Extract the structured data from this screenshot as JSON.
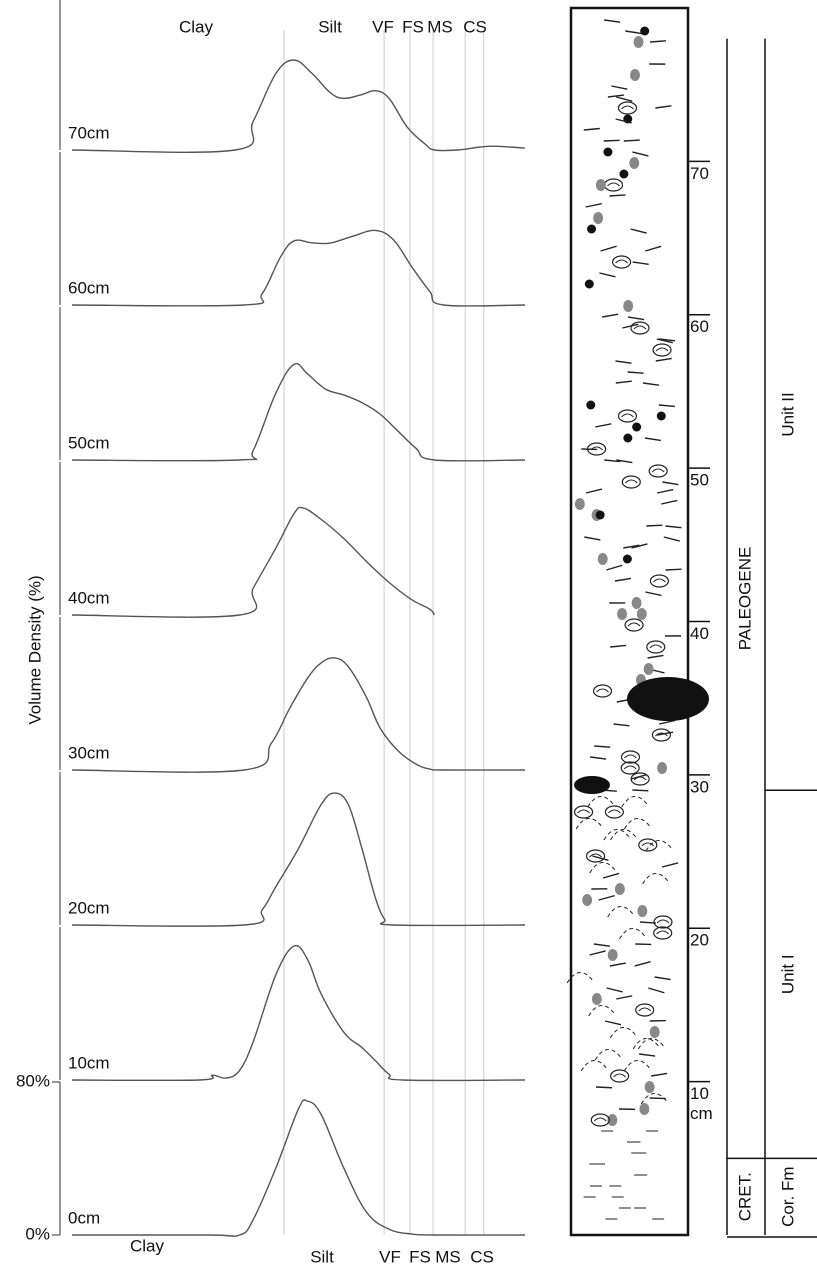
{
  "chart_data": {
    "type": "line",
    "y_label": "Volume Density (%)",
    "size_classes": [
      "Clay",
      "Silt",
      "VF",
      "FS",
      "MS",
      "CS"
    ],
    "class_boundaries": [
      46.8,
      68.9,
      74.6,
      79.7,
      86.8,
      90.9
    ],
    "xlim": [
      0,
      100
    ],
    "ylim": [
      0,
      80
    ],
    "yticks": [
      {
        "value": 0,
        "label": "0%"
      },
      {
        "value": 80,
        "label": "80%"
      }
    ],
    "series": [
      {
        "name": "0cm",
        "color": "#555555",
        "x": [
          0,
          30,
          37,
          40,
          45,
          50,
          52,
          55,
          60,
          65,
          70,
          75,
          80,
          100
        ],
        "values": [
          0,
          0,
          0,
          8,
          35,
          66,
          70,
          63,
          35,
          12,
          3,
          0.5,
          0,
          0
        ]
      },
      {
        "name": "10cm",
        "color": "#555555",
        "x": [
          0,
          28,
          31,
          34,
          37,
          40,
          45,
          49,
          52,
          55,
          60,
          64,
          67,
          70,
          73,
          100
        ],
        "values": [
          0,
          0,
          2.5,
          1,
          5,
          20,
          55,
          70,
          63,
          45,
          25,
          17,
          10,
          3,
          0,
          0
        ]
      },
      {
        "name": "20cm",
        "color": "#555555",
        "x": [
          0,
          38,
          42,
          45,
          50,
          55,
          58,
          61,
          64,
          67,
          69,
          71,
          100
        ],
        "values": [
          0,
          0,
          8,
          20,
          40,
          63,
          69,
          63,
          40,
          14,
          3,
          0,
          0
        ]
      },
      {
        "name": "30cm",
        "color": "#555555",
        "x": [
          0,
          38,
          44,
          48,
          52,
          55,
          58,
          61,
          65,
          68,
          72,
          76,
          79,
          82,
          100
        ],
        "values": [
          0,
          0,
          14,
          32,
          48,
          56,
          58.6,
          54,
          38,
          22,
          10,
          3,
          0.5,
          0,
          0
        ]
      },
      {
        "name": "40cm",
        "color": "#555555",
        "x": [
          0,
          37,
          40,
          45,
          49,
          51,
          55,
          60,
          65,
          70,
          75,
          79,
          80
        ],
        "values": [
          0,
          0,
          14,
          35,
          53,
          56,
          50,
          40,
          28,
          17,
          8,
          3,
          0
        ]
      },
      {
        "name": "50cm",
        "color": "#555555",
        "x": [
          0,
          37,
          40,
          45,
          49,
          52,
          56,
          60,
          64,
          68,
          72,
          76,
          80,
          100
        ],
        "values": [
          0,
          0,
          5,
          35,
          50,
          45,
          37,
          34,
          30,
          24,
          15,
          6,
          0,
          0
        ]
      },
      {
        "name": "60cm",
        "color": "#555555",
        "x": [
          0,
          38,
          42,
          46,
          49,
          53,
          57,
          62,
          67,
          71,
          75,
          79,
          82,
          100
        ],
        "values": [
          0,
          0,
          6,
          25,
          33.5,
          32.5,
          32.4,
          36,
          39,
          34,
          20,
          7,
          0,
          0
        ]
      },
      {
        "name": "70cm",
        "color": "#555555",
        "x": [
          0,
          36,
          40,
          45,
          49,
          53,
          57,
          60,
          64,
          67,
          70,
          74,
          78,
          80,
          85,
          90,
          93,
          97,
          100
        ],
        "values": [
          0,
          0,
          15,
          40,
          47,
          40,
          30,
          27,
          29,
          31,
          27,
          12,
          3,
          0,
          0,
          1.5,
          2,
          1.5,
          1
        ]
      }
    ]
  },
  "stratigraphy": {
    "ylim": [
      0,
      80
    ],
    "ticks": [
      10,
      20,
      30,
      40,
      50,
      60,
      70
    ],
    "unit": "cm",
    "periods": [
      {
        "label": "CRET.",
        "from": 0,
        "to": 5
      },
      {
        "label": "PALEOGENE",
        "from": 5,
        "to": 78
      }
    ],
    "formations": [
      {
        "label": "Cor. Fm",
        "from": 0,
        "to": 5
      },
      {
        "label": "Unit I",
        "from": 5,
        "to": 29
      },
      {
        "label": "Unit II",
        "from": 29,
        "to": 78
      }
    ]
  }
}
